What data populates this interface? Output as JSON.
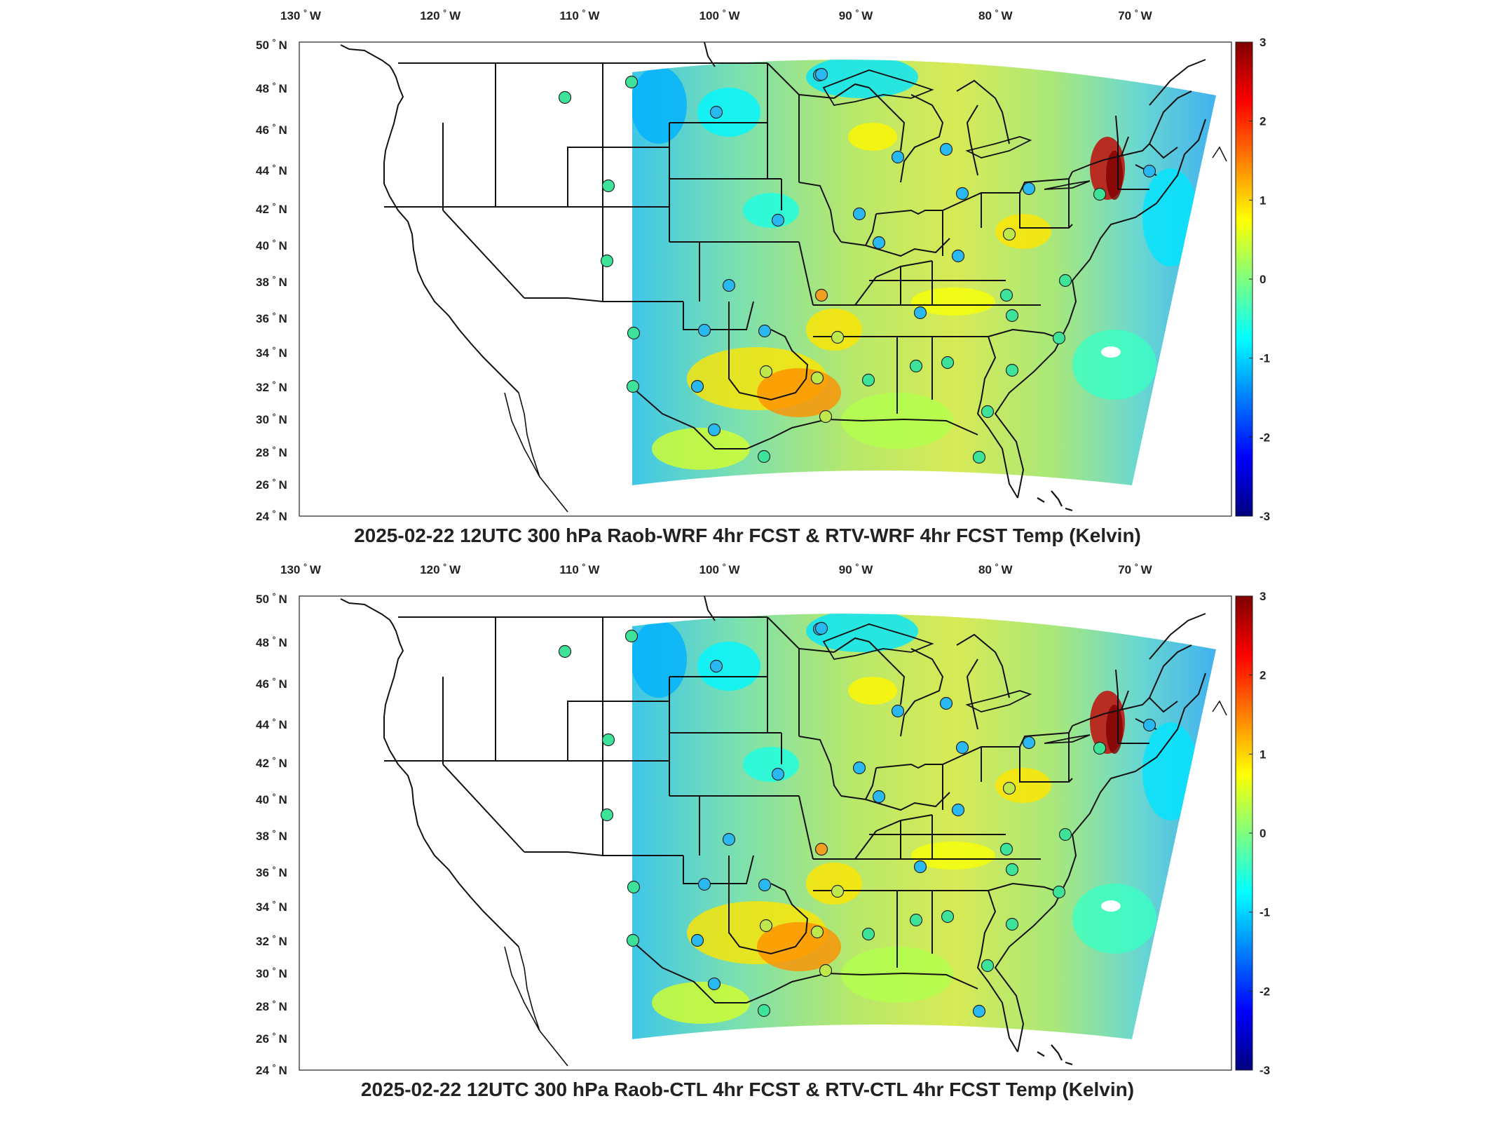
{
  "colorbar": {
    "ticks": [
      "3",
      "2",
      "1",
      "0",
      "-1",
      "-2",
      "-3"
    ],
    "min": -3,
    "max": 3,
    "colormap": [
      "#00007f",
      "#0000ff",
      "#007fff",
      "#00ffff",
      "#7fff7f",
      "#ffff00",
      "#ff7f00",
      "#ff0000",
      "#7f0000"
    ]
  },
  "axes": {
    "lon_labels": [
      "130",
      "120",
      "110",
      "100",
      "90",
      "80",
      "70"
    ],
    "lon_suffix": "W",
    "lat_labels": [
      "50",
      "48",
      "46",
      "44",
      "42",
      "40",
      "38",
      "36",
      "34",
      "32",
      "30",
      "28",
      "26",
      "24"
    ],
    "lat_suffix": "N",
    "degree_symbol": "°"
  },
  "panels": [
    {
      "title": "2025-02-22 12UTC 300 hPa Raob-WRF 4hr FCST & RTV-WRF 4hr FCST Temp (Kelvin)"
    },
    {
      "title": "2025-02-22 12UTC 300 hPa Raob-CTL 4hr FCST & RTV-CTL 4hr FCST Temp (Kelvin)"
    }
  ],
  "stations": {
    "colors": {
      "cyan_green": "#3ee39a",
      "orange": "#f0a020",
      "blue": "#29b9f0"
    }
  }
}
